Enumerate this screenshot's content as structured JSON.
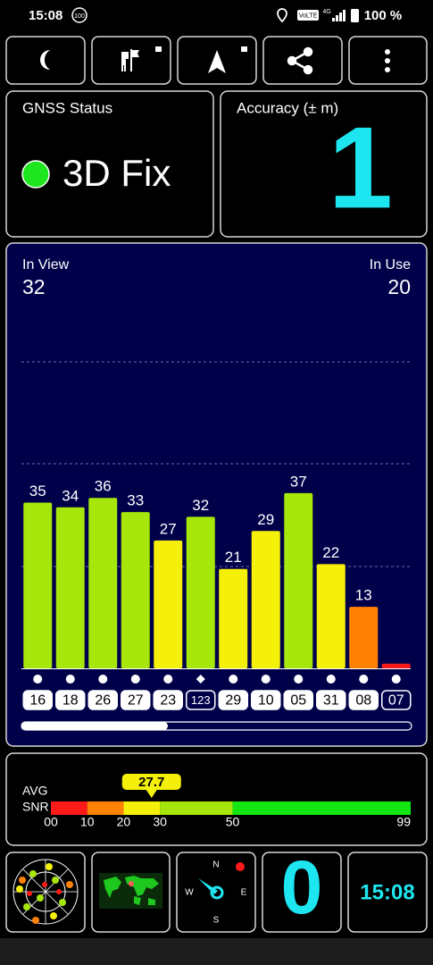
{
  "status_bar": {
    "time": "15:08",
    "notification_count": "100",
    "volte": "VoLTE",
    "network": "4G",
    "battery": "100 %"
  },
  "gnss_status": {
    "label": "GNSS Status",
    "value": "3D Fix"
  },
  "accuracy": {
    "label": "Accuracy (± m)",
    "value": 1
  },
  "satellites": {
    "in_view_label": "In View",
    "in_view": 32,
    "in_use_label": "In Use",
    "in_use": 20
  },
  "chart_data": {
    "type": "bar",
    "categories": [
      "16",
      "18",
      "26",
      "27",
      "23",
      "123",
      "29",
      "10",
      "05",
      "31",
      "08",
      "07"
    ],
    "values": [
      35,
      34,
      36,
      33,
      27,
      32,
      21,
      29,
      37,
      22,
      13,
      1
    ],
    "value_labels": [
      "35",
      "34",
      "36",
      "33",
      "27",
      "32",
      "21",
      "29",
      "37",
      "22",
      "13",
      null
    ],
    "colors": [
      "#a6e60a",
      "#a6e60a",
      "#a6e60a",
      "#a6e60a",
      "#f5f00a",
      "#a6e60a",
      "#f5f00a",
      "#f5f00a",
      "#a6e60a",
      "#f5f00a",
      "#ff8205",
      "#ff1a1a"
    ],
    "ylim": [
      0,
      70
    ]
  },
  "snr": {
    "avg_label": "AVG",
    "snr_label": "SNR",
    "value": 27.7,
    "value_label": "27.7",
    "xlim": [
      0,
      99
    ],
    "xticks": [
      {
        "value": 0,
        "label": "00"
      },
      10,
      20,
      30,
      50,
      99
    ],
    "bands": [
      {
        "from": 0,
        "to": 10,
        "color": "#ff1a1a"
      },
      {
        "from": 10,
        "to": 20,
        "color": "#ff8205"
      },
      {
        "from": 20,
        "to": 30,
        "color": "#f5f00a"
      },
      {
        "from": 30,
        "to": 50,
        "color": "#a6e60a"
      },
      {
        "from": 50,
        "to": 99,
        "color": "#14e614"
      }
    ]
  },
  "bottom_bar": {
    "counter": 0,
    "clock": "15:08",
    "compass": [
      "N",
      "E",
      "S",
      "W"
    ]
  }
}
